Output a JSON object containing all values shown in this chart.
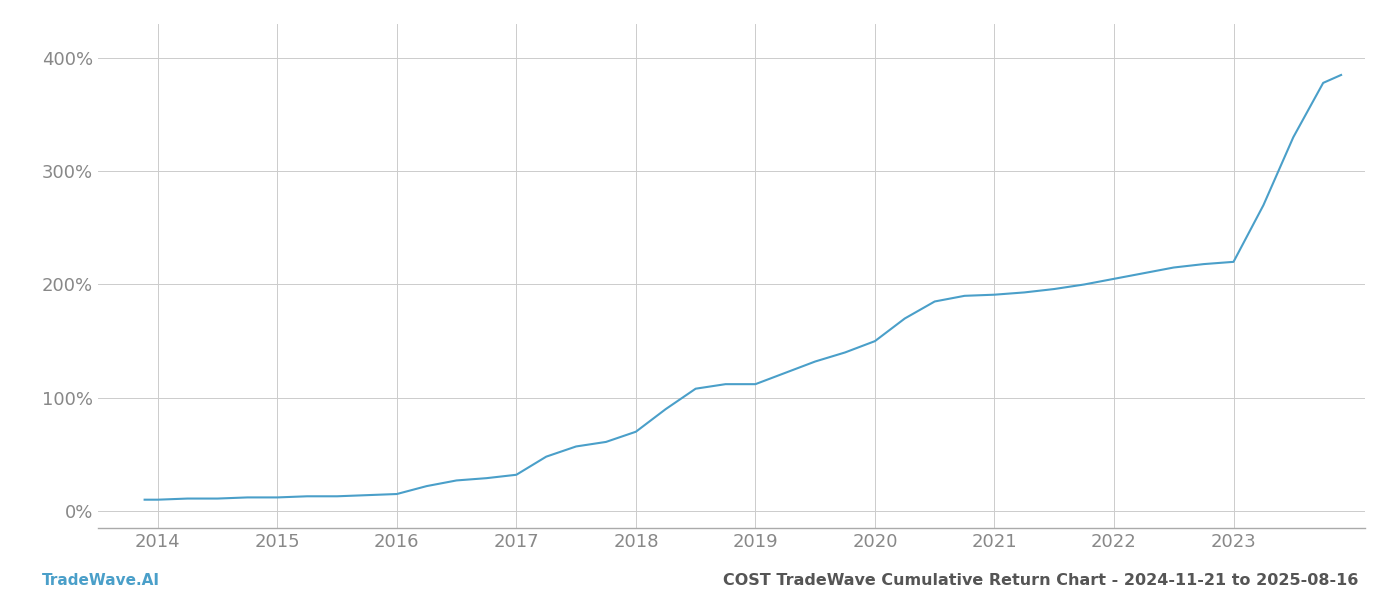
{
  "title": "COST TradeWave Cumulative Return Chart - 2024-11-21 to 2025-08-16",
  "watermark": "TradeWave.AI",
  "line_color": "#4a9fc9",
  "background_color": "#ffffff",
  "grid_color": "#cccccc",
  "x_years": [
    2014,
    2015,
    2016,
    2017,
    2018,
    2019,
    2020,
    2021,
    2022,
    2023
  ],
  "x_data": [
    2013.89,
    2014.0,
    2014.25,
    2014.5,
    2014.75,
    2015.0,
    2015.25,
    2015.5,
    2015.75,
    2016.0,
    2016.25,
    2016.5,
    2016.75,
    2017.0,
    2017.25,
    2017.5,
    2017.75,
    2018.0,
    2018.25,
    2018.5,
    2018.75,
    2019.0,
    2019.25,
    2019.5,
    2019.75,
    2020.0,
    2020.25,
    2020.5,
    2020.75,
    2021.0,
    2021.25,
    2021.5,
    2021.75,
    2022.0,
    2022.25,
    2022.5,
    2022.75,
    2023.0,
    2023.25,
    2023.5,
    2023.75,
    2023.9
  ],
  "y_data": [
    10,
    10,
    11,
    11,
    12,
    12,
    13,
    13,
    14,
    15,
    22,
    27,
    29,
    32,
    48,
    57,
    61,
    70,
    90,
    108,
    112,
    112,
    122,
    132,
    140,
    150,
    170,
    185,
    190,
    191,
    193,
    196,
    200,
    205,
    210,
    215,
    218,
    220,
    270,
    330,
    378,
    385
  ],
  "yticks": [
    0,
    100,
    200,
    300,
    400
  ],
  "ylim": [
    -15,
    430
  ],
  "xlim": [
    2013.5,
    2024.1
  ],
  "title_fontsize": 11.5,
  "watermark_fontsize": 11,
  "tick_fontsize": 13,
  "title_color": "#555555",
  "watermark_color": "#4a9fc9",
  "tick_color": "#888888"
}
